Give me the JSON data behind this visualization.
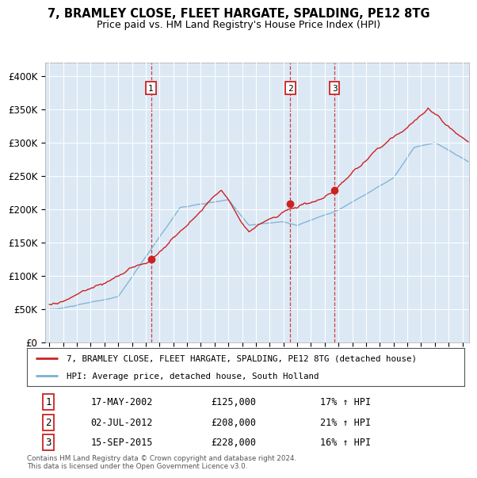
{
  "title": "7, BRAMLEY CLOSE, FLEET HARGATE, SPALDING, PE12 8TG",
  "subtitle": "Price paid vs. HM Land Registry's House Price Index (HPI)",
  "red_line_label": "7, BRAMLEY CLOSE, FLEET HARGATE, SPALDING, PE12 8TG (detached house)",
  "blue_line_label": "HPI: Average price, detached house, South Holland",
  "footer": "Contains HM Land Registry data © Crown copyright and database right 2024.\nThis data is licensed under the Open Government Licence v3.0.",
  "sales": [
    {
      "label": "1",
      "date": "17-MAY-2002",
      "price": 125000,
      "hpi_pct": "17% ↑ HPI",
      "x": 2002.38
    },
    {
      "label": "2",
      "date": "02-JUL-2012",
      "price": 208000,
      "hpi_pct": "21% ↑ HPI",
      "x": 2012.5
    },
    {
      "label": "3",
      "date": "15-SEP-2015",
      "price": 228000,
      "hpi_pct": "16% ↑ HPI",
      "x": 2015.71
    }
  ],
  "ylim": [
    0,
    420000
  ],
  "yticks": [
    0,
    50000,
    100000,
    150000,
    200000,
    250000,
    300000,
    350000,
    400000
  ],
  "xlim_start": 1994.7,
  "xlim_end": 2025.5,
  "plot_bg_color": "#dce9f5",
  "red_color": "#cc2222",
  "blue_color": "#7ab0d4"
}
